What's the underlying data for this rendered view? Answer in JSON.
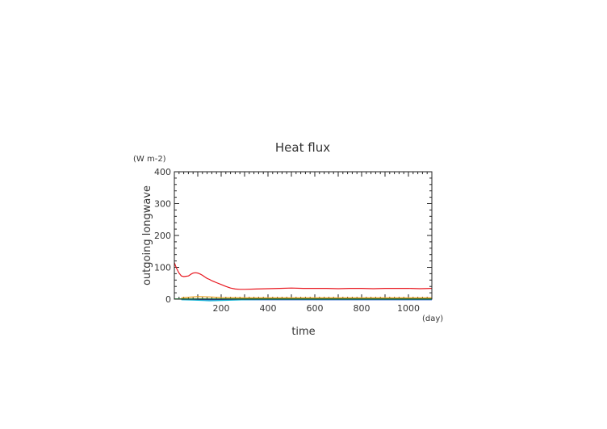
{
  "chart_data": {
    "type": "line",
    "title": "Heat flux",
    "xlabel": "time",
    "ylabel": "outgoing longwave",
    "x_unit": "(day)",
    "y_unit": "(W m-2)",
    "xlim": [
      0,
      1100
    ],
    "ylim": [
      0,
      400
    ],
    "x_ticks": [
      "200",
      "400",
      "600",
      "800",
      "1000"
    ],
    "y_ticks": [
      "0",
      "100",
      "200",
      "300",
      "400"
    ],
    "grid": false,
    "series": [
      {
        "color": "#e8161e",
        "x": [
          0,
          5,
          10,
          20,
          30,
          40,
          50,
          60,
          70,
          80,
          90,
          100,
          110,
          120,
          130,
          140,
          150,
          160,
          170,
          180,
          200,
          220,
          240,
          260,
          280,
          300,
          350,
          400,
          450,
          500,
          550,
          600,
          650,
          700,
          750,
          800,
          850,
          900,
          950,
          1000,
          1050,
          1100
        ],
        "y": [
          115,
          105,
          96,
          82,
          73,
          71,
          72,
          73,
          78,
          82,
          83,
          82,
          79,
          75,
          70,
          65,
          62,
          58,
          55,
          52,
          46,
          40,
          35,
          32,
          31,
          31,
          32,
          33,
          34,
          35,
          34,
          34,
          34,
          33,
          34,
          34,
          33,
          34,
          34,
          34,
          33,
          34
        ]
      },
      {
        "color": "#e8a018",
        "x": [
          30,
          60,
          100,
          150,
          200,
          300,
          400,
          500,
          600,
          700,
          800,
          900,
          1000,
          1100
        ],
        "y": [
          4,
          6,
          8,
          7,
          5,
          4,
          4,
          4,
          4,
          4,
          4,
          4,
          4,
          4
        ]
      },
      {
        "color": "#2ab04a",
        "x": [
          0,
          100,
          200,
          300,
          400,
          500,
          600,
          700,
          800,
          900,
          1000,
          1100
        ],
        "y": [
          1,
          1,
          1,
          1,
          1,
          1,
          1,
          1,
          1,
          1,
          1,
          1
        ]
      },
      {
        "color": "#1f5fd0",
        "x": [
          30,
          100,
          200,
          300,
          400,
          500,
          600,
          700,
          800,
          900,
          1000,
          1100
        ],
        "y": [
          -1,
          -2,
          -2,
          -2,
          -2,
          -2,
          -2,
          -2,
          -2,
          -2,
          -2,
          -2
        ]
      },
      {
        "color": "#20b8d8",
        "x": [
          30,
          80,
          150,
          200,
          260,
          300,
          400,
          500,
          600,
          700,
          800,
          900,
          1000,
          1100
        ],
        "y": [
          -2,
          -3,
          -5,
          -4,
          -3,
          -2,
          -1,
          -1,
          -1,
          -1,
          -1,
          -1,
          -1,
          -1
        ]
      }
    ]
  }
}
